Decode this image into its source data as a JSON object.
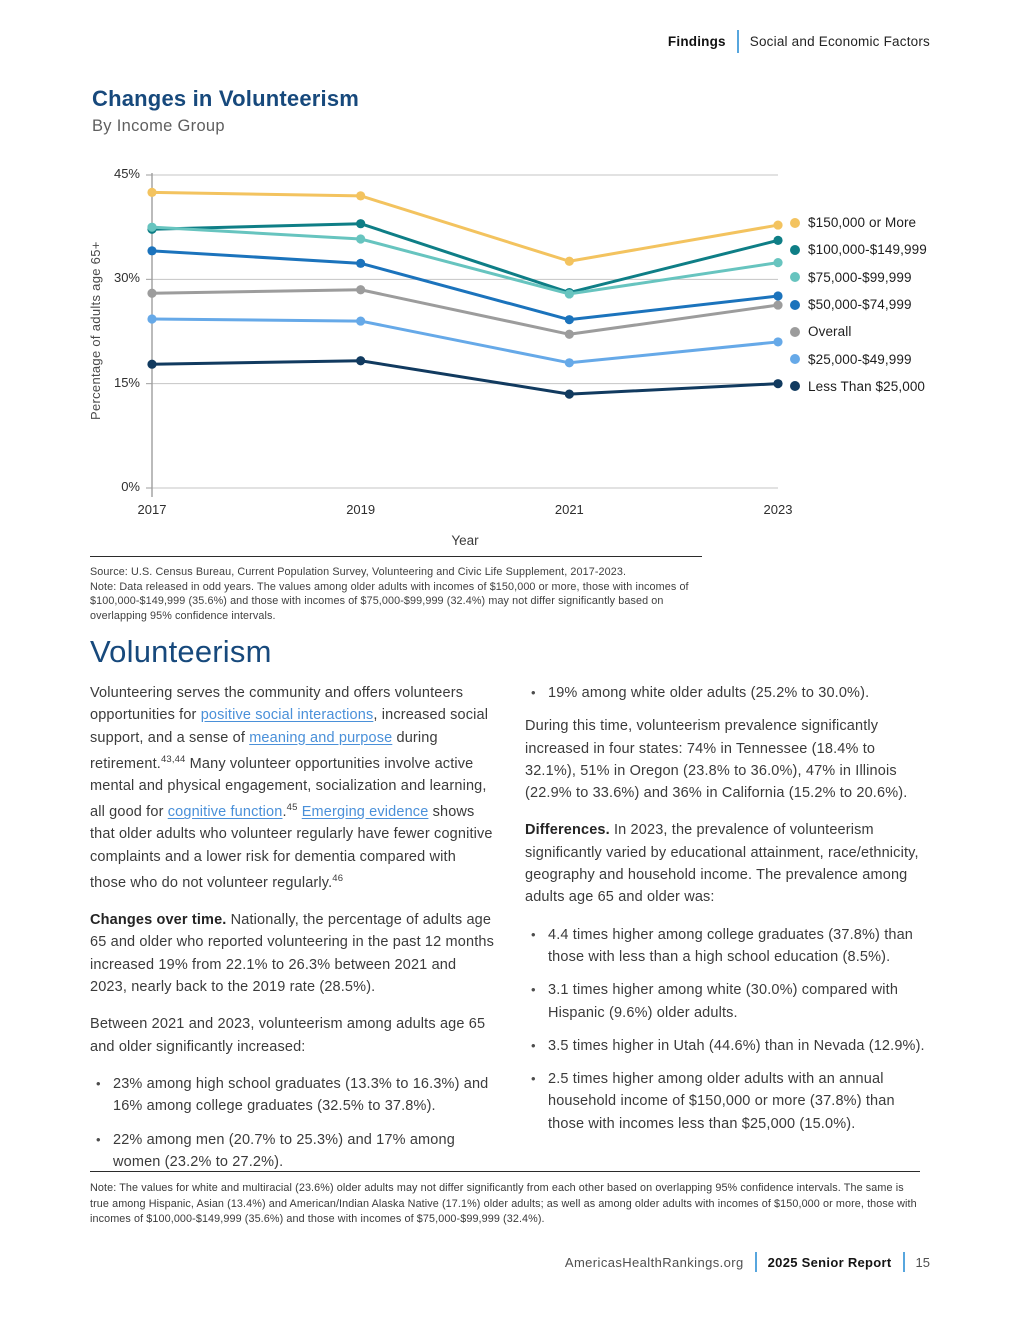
{
  "header": {
    "section": "Findings",
    "subsection": "Social and Economic Factors"
  },
  "chart_block": {
    "title": "Changes in Volunteerism",
    "subtitle": "By Income Group",
    "source_line": "Source: U.S. Census Bureau, Current Population Survey, Volunteering and Civic Life Supplement, 2017-2023.",
    "note_line": "Note: Data released in odd years. The values among older adults with incomes of $150,000 or more, those with incomes of $100,000-$149,999 (35.6%) and those with incomes of $75,000-$99,999 (32.4%) may not differ significantly based on overlapping 95% confidence intervals."
  },
  "chart_data": {
    "type": "line",
    "title": "Changes in Volunteerism",
    "subtitle": "By Income Group",
    "x": [
      "2017",
      "2019",
      "2021",
      "2023"
    ],
    "xlabel": "Year",
    "ylabel": "Percentage of adults age 65+",
    "ylim": [
      0,
      45
    ],
    "yticks": [
      {
        "value": 45,
        "label": "45%"
      },
      {
        "value": 30,
        "label": "30%"
      },
      {
        "value": 15,
        "label": "15%"
      },
      {
        "value": 0,
        "label": "0%"
      }
    ],
    "grid": "horizontal",
    "legend_position": "right",
    "series": [
      {
        "name": "$150,000 or More",
        "color": "#F3C35F",
        "values": [
          42.5,
          42.0,
          32.6,
          37.8
        ]
      },
      {
        "name": "$100,000-$149,999",
        "color": "#0E7E86",
        "values": [
          37.2,
          38.0,
          28.1,
          35.6
        ]
      },
      {
        "name": "$75,000-$99,999",
        "color": "#67C4BF",
        "values": [
          37.5,
          35.8,
          27.9,
          32.4
        ]
      },
      {
        "name": "$50,000-$74,999",
        "color": "#1B73BC",
        "values": [
          34.1,
          32.3,
          24.2,
          27.6
        ]
      },
      {
        "name": "Overall",
        "color": "#9C9C9C",
        "values": [
          28.0,
          28.5,
          22.1,
          26.3
        ]
      },
      {
        "name": "$25,000-$49,999",
        "color": "#66A9E8",
        "values": [
          24.3,
          24.0,
          18.0,
          21.0
        ]
      },
      {
        "name": "Less Than $25,000",
        "color": "#113A5F",
        "values": [
          17.8,
          18.3,
          13.5,
          15.0
        ]
      }
    ]
  },
  "article": {
    "heading": "Volunteerism",
    "left": {
      "p1": [
        {
          "t": "Volunteering serves the community and offers volunteers opportunities for "
        },
        {
          "l": "positive social interactions"
        },
        {
          "t": ", increased social support, and a sense of "
        },
        {
          "l": "meaning and purpose"
        },
        {
          "t": " during retirement."
        },
        {
          "s": "43,44"
        },
        {
          "t": " Many volunteer opportunities involve active mental and physical engagement, socialization and learning, all good for "
        },
        {
          "l": "cognitive function"
        },
        {
          "t": "."
        },
        {
          "s": "45"
        },
        {
          "t": " "
        },
        {
          "l": "Emerging evidence"
        },
        {
          "t": " shows that older adults who volunteer regularly have fewer cognitive complaints and a lower risk for dementia compared with those who do not volunteer regularly."
        },
        {
          "s": "46"
        }
      ],
      "p2": [
        {
          "b": "Changes over time."
        },
        {
          "t": " Nationally, the percentage of adults age 65 and older who reported volunteering in the past 12 months increased 19% from 22.1% to 26.3% between 2021 and 2023, nearly back to the 2019 rate (28.5%)."
        }
      ],
      "p3": [
        {
          "t": "Between 2021 and 2023, volunteerism among adults age 65 and older significantly increased:"
        }
      ],
      "bullets": [
        "23% among high school graduates (13.3% to 16.3%) and 16% among college graduates (32.5% to 37.8%).",
        "22% among men (20.7% to 25.3%) and 17% among women (23.2% to 27.2%)."
      ]
    },
    "right": {
      "bullets_top": [
        "19% among white older adults (25.2% to 30.0%)."
      ],
      "p1": "During this time, volunteerism prevalence significantly increased in four states: 74% in Tennessee (18.4% to 32.1%), 51% in Oregon (23.8% to 36.0%), 47% in Illinois (22.9% to 33.6%) and 36% in California (15.2% to 20.6%).",
      "p2": [
        {
          "b": "Differences."
        },
        {
          "t": " In 2023, the prevalence of volunteerism significantly varied by educational attainment, race/ethnicity, geography and household income. The prevalence among adults age 65 and older was:"
        }
      ],
      "bullets": [
        "4.4 times higher among college graduates (37.8%) than those with less than a high school education (8.5%).",
        "3.1 times higher among white (30.0%) compared with Hispanic (9.6%) older adults.",
        "3.5 times higher in Utah (44.6%) than in Nevada (12.9%).",
        "2.5 times higher among older adults with an annual household income of $150,000 or more (37.8%) than those with incomes less than $25,000 (15.0%)."
      ]
    }
  },
  "footnote": "Note: The values for white and multiracial (23.6%) older adults may not differ significantly from each other based on overlapping 95% confidence intervals. The same is true among Hispanic, Asian (13.4%) and American/Indian Alaska Native (17.1%) older adults; as well as among older adults with incomes of $150,000 or more, those with incomes of $100,000-$149,999 (35.6%) and those with incomes of $75,000-$99,999 (32.4%).",
  "footer": {
    "site": "AmericasHealthRankings.org",
    "report": "2025 Senior Report",
    "page_number": "15"
  }
}
